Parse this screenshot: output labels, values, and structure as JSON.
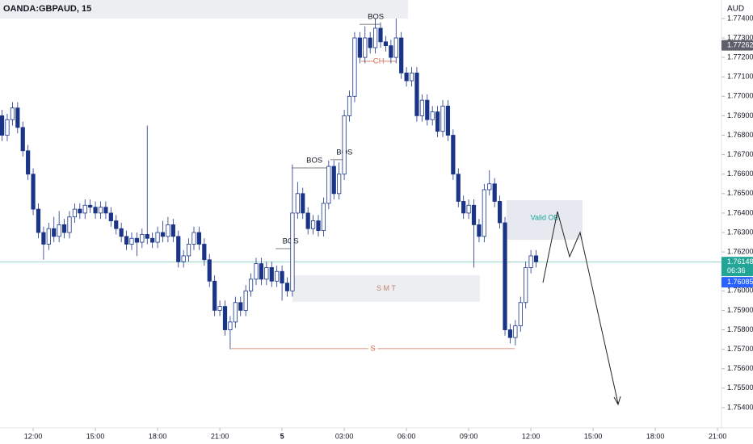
{
  "chart_data": {
    "type": "candlestick",
    "title": "OANDA:GBPAUD, 15",
    "currency": "AUD",
    "xlim": [
      10.4,
      45.19
    ],
    "ylim": [
      1.75296,
      1.77495
    ],
    "xticks": [
      {
        "value": 12,
        "label": "12:00"
      },
      {
        "value": 15,
        "label": "15:00"
      },
      {
        "value": 18,
        "label": "18:00"
      },
      {
        "value": 21,
        "label": "21:00"
      },
      {
        "value": 24,
        "label": "5"
      },
      {
        "value": 27,
        "label": "03:00"
      },
      {
        "value": 30,
        "label": "06:00"
      },
      {
        "value": 33,
        "label": "09:00"
      },
      {
        "value": 36,
        "label": "12:00"
      },
      {
        "value": 39,
        "label": "15:00"
      },
      {
        "value": 42,
        "label": "18:00"
      },
      {
        "value": 45,
        "label": "21:00"
      }
    ],
    "yticks": [
      {
        "value": 1.774,
        "label": "1.77400"
      },
      {
        "value": 1.773,
        "label": "1.77300"
      },
      {
        "value": 1.772,
        "label": "1.77200"
      },
      {
        "value": 1.771,
        "label": "1.77100"
      },
      {
        "value": 1.77,
        "label": "1.77000"
      },
      {
        "value": 1.769,
        "label": "1.76900"
      },
      {
        "value": 1.768,
        "label": "1.76800"
      },
      {
        "value": 1.767,
        "label": "1.76700"
      },
      {
        "value": 1.766,
        "label": "1.76600"
      },
      {
        "value": 1.765,
        "label": "1.76500"
      },
      {
        "value": 1.764,
        "label": "1.76400"
      },
      {
        "value": 1.763,
        "label": "1.76300"
      },
      {
        "value": 1.762,
        "label": "1.76200"
      },
      {
        "value": 1.76,
        "label": "1.76000"
      },
      {
        "value": 1.759,
        "label": "1.75900"
      },
      {
        "value": 1.758,
        "label": "1.75800"
      },
      {
        "value": 1.757,
        "label": "1.75700"
      },
      {
        "value": 1.756,
        "label": "1.75600"
      },
      {
        "value": 1.755,
        "label": "1.75500"
      },
      {
        "value": 1.754,
        "label": "1.75400"
      }
    ],
    "grid": false,
    "up_color": "#ffffff",
    "down_color": "#1a3588",
    "wick_color": "#1a3588",
    "x": [
      10.5,
      10.75,
      11,
      11.25,
      11.5,
      11.75,
      12,
      12.25,
      12.5,
      12.75,
      13,
      13.25,
      13.5,
      13.75,
      14,
      14.25,
      14.5,
      14.75,
      15,
      15.25,
      15.5,
      15.75,
      16,
      16.25,
      16.5,
      16.75,
      17,
      17.25,
      17.5,
      17.75,
      18,
      18.25,
      18.5,
      18.75,
      19,
      19.25,
      19.5,
      19.75,
      20,
      20.25,
      20.5,
      20.75,
      21,
      21.25,
      21.5,
      21.75,
      22,
      22.25,
      22.5,
      22.75,
      23,
      23.25,
      23.5,
      23.75,
      24,
      24.25,
      24.5,
      24.75,
      25,
      25.25,
      25.5,
      25.75,
      26,
      26.25,
      26.5,
      26.75,
      27,
      27.25,
      27.5,
      27.75,
      28,
      28.25,
      28.5,
      28.75,
      29,
      29.25,
      29.5,
      29.75,
      30,
      30.25,
      30.5,
      30.75,
      31,
      31.25,
      31.5,
      31.75,
      32,
      32.25,
      32.5,
      32.75,
      33,
      33.25,
      33.5,
      33.75,
      34,
      34.25,
      34.5,
      34.75,
      35,
      35.25,
      35.5,
      35.75,
      36,
      36.25
    ],
    "open": [
      1.769,
      1.768,
      1.7688,
      1.7694,
      1.7684,
      1.7672,
      1.766,
      1.7642,
      1.763,
      1.7624,
      1.7632,
      1.7628,
      1.7634,
      1.763,
      1.7638,
      1.7642,
      1.764,
      1.7644,
      1.7643,
      1.764,
      1.7643,
      1.764,
      1.7636,
      1.7632,
      1.7628,
      1.7624,
      1.7627,
      1.7625,
      1.7629,
      1.7627,
      1.7625,
      1.763,
      1.7628,
      1.7634,
      1.7628,
      1.7615,
      1.7618,
      1.7624,
      1.763,
      1.7624,
      1.7616,
      1.7605,
      1.759,
      1.7592,
      1.758,
      1.7584,
      1.7594,
      1.759,
      1.76,
      1.7606,
      1.7614,
      1.7606,
      1.7612,
      1.7605,
      1.761,
      1.7604,
      1.76,
      1.764,
      1.765,
      1.764,
      1.7632,
      1.7636,
      1.7631,
      1.7645,
      1.7664,
      1.765,
      1.766,
      1.769,
      1.77,
      1.773,
      1.772,
      1.773,
      1.7725,
      1.7735,
      1.7728,
      1.7726,
      1.772,
      1.773,
      1.7712,
      1.7708,
      1.7712,
      1.769,
      1.7698,
      1.7688,
      1.7692,
      1.7682,
      1.7695,
      1.768,
      1.766,
      1.7646,
      1.764,
      1.7644,
      1.7634,
      1.7628,
      1.7652,
      1.7655,
      1.7646,
      1.7635,
      1.758,
      1.7576,
      1.7582,
      1.7594,
      1.7612,
      1.7618
    ],
    "high": [
      1.7693,
      1.7691,
      1.7697,
      1.7697,
      1.7687,
      1.7675,
      1.7663,
      1.7645,
      1.7633,
      1.7635,
      1.7638,
      1.7641,
      1.7637,
      1.7641,
      1.7645,
      1.7645,
      1.7647,
      1.7647,
      1.7646,
      1.7646,
      1.7646,
      1.7643,
      1.7639,
      1.7635,
      1.7631,
      1.763,
      1.763,
      1.7632,
      1.7685,
      1.763,
      1.7633,
      1.7636,
      1.7638,
      1.7637,
      1.7631,
      1.7621,
      1.7627,
      1.7633,
      1.7633,
      1.7627,
      1.7619,
      1.7608,
      1.7595,
      1.7595,
      1.7587,
      1.7597,
      1.7597,
      1.7603,
      1.7609,
      1.7617,
      1.7617,
      1.7615,
      1.7615,
      1.7613,
      1.7613,
      1.7607,
      1.7665,
      1.7656,
      1.7653,
      1.7643,
      1.7639,
      1.7639,
      1.7648,
      1.7667,
      1.7667,
      1.7666,
      1.7693,
      1.7703,
      1.7733,
      1.7733,
      1.7736,
      1.7733,
      1.774,
      1.7738,
      1.7731,
      1.7729,
      1.774,
      1.7733,
      1.7715,
      1.7715,
      1.7715,
      1.7701,
      1.7701,
      1.7695,
      1.7695,
      1.7698,
      1.7698,
      1.7683,
      1.7663,
      1.7649,
      1.7647,
      1.7647,
      1.7637,
      1.7655,
      1.7662,
      1.7658,
      1.7649,
      1.7638,
      1.7583,
      1.7585,
      1.7597,
      1.7615,
      1.7621,
      1.7621
    ],
    "low": [
      1.7677,
      1.7677,
      1.7685,
      1.7681,
      1.7669,
      1.7657,
      1.7639,
      1.7627,
      1.7616,
      1.7621,
      1.7625,
      1.7625,
      1.7627,
      1.7627,
      1.7635,
      1.7637,
      1.7637,
      1.764,
      1.7637,
      1.7637,
      1.7637,
      1.7633,
      1.7629,
      1.7625,
      1.7621,
      1.7621,
      1.7618,
      1.7622,
      1.7624,
      1.7622,
      1.7622,
      1.7625,
      1.7625,
      1.7625,
      1.7612,
      1.7612,
      1.7615,
      1.7621,
      1.7621,
      1.7613,
      1.7602,
      1.7587,
      1.7587,
      1.7577,
      1.757,
      1.7581,
      1.7587,
      1.7587,
      1.7597,
      1.7603,
      1.7603,
      1.7603,
      1.7602,
      1.7602,
      1.7595,
      1.7597,
      1.7597,
      1.7637,
      1.7637,
      1.7629,
      1.7629,
      1.7628,
      1.7628,
      1.7642,
      1.7647,
      1.7647,
      1.7657,
      1.7687,
      1.7697,
      1.7717,
      1.7717,
      1.7722,
      1.7722,
      1.7725,
      1.7723,
      1.7717,
      1.7717,
      1.7709,
      1.7705,
      1.7705,
      1.7687,
      1.7687,
      1.7685,
      1.7685,
      1.7679,
      1.7679,
      1.7677,
      1.7657,
      1.7643,
      1.7637,
      1.7637,
      1.7612,
      1.7625,
      1.7625,
      1.7649,
      1.7643,
      1.7632,
      1.7577,
      1.7573,
      1.7572,
      1.7579,
      1.7591,
      1.7609,
      1.7612
    ],
    "close": [
      1.768,
      1.7688,
      1.7694,
      1.7684,
      1.7672,
      1.766,
      1.7642,
      1.763,
      1.7624,
      1.7632,
      1.7628,
      1.7634,
      1.763,
      1.7638,
      1.7642,
      1.764,
      1.7644,
      1.7643,
      1.764,
      1.7643,
      1.764,
      1.7636,
      1.7632,
      1.7628,
      1.7624,
      1.7627,
      1.7625,
      1.7629,
      1.7627,
      1.7625,
      1.763,
      1.7628,
      1.7634,
      1.7628,
      1.7615,
      1.7618,
      1.7624,
      1.763,
      1.7624,
      1.7616,
      1.7605,
      1.759,
      1.7592,
      1.758,
      1.7584,
      1.7594,
      1.759,
      1.76,
      1.7606,
      1.7614,
      1.7606,
      1.7612,
      1.7605,
      1.761,
      1.7604,
      1.76,
      1.764,
      1.765,
      1.764,
      1.7632,
      1.7636,
      1.7631,
      1.7645,
      1.7664,
      1.765,
      1.766,
      1.769,
      1.77,
      1.773,
      1.772,
      1.773,
      1.7725,
      1.7735,
      1.7728,
      1.7726,
      1.772,
      1.773,
      1.7712,
      1.7708,
      1.7712,
      1.769,
      1.7698,
      1.7688,
      1.7692,
      1.7682,
      1.7695,
      1.768,
      1.766,
      1.7646,
      1.764,
      1.7644,
      1.7634,
      1.7628,
      1.7652,
      1.7655,
      1.7646,
      1.7635,
      1.758,
      1.7576,
      1.7582,
      1.7594,
      1.7612,
      1.7618,
      1.7615
    ],
    "zones": [
      {
        "x": [
          10.4,
          30.07
        ],
        "y": [
          1.774,
          1.77495
        ],
        "color": "#eceef2"
      },
      {
        "label": "S M T",
        "x": [
          24.5,
          33.54
        ],
        "y": [
          1.75944,
          1.7608
        ],
        "color": "#eceef2",
        "label_color": "#c0806e"
      },
      {
        "label": "Valid OB",
        "x": [
          34.83,
          38.49
        ],
        "y": [
          1.76263,
          1.76466
        ],
        "color": "#e6e9ef",
        "label_color": "#1aa39a"
      }
    ],
    "levels": [
      {
        "label": "BOS",
        "x": [
          23.69,
          24.5
        ],
        "y": 1.76217,
        "color": "#555555"
      },
      {
        "label": "BOS",
        "x": [
          24.47,
          26.34
        ],
        "y": 1.76632,
        "color": "#555555"
      },
      {
        "label": "BOS",
        "x": [
          26.34,
          27.0
        ],
        "y": 1.76674,
        "color": "#555555"
      },
      {
        "label": "BOS",
        "x": [
          27.74,
          28.72
        ],
        "y": 1.7737,
        "color": "#555555"
      },
      {
        "label": "CH",
        "x": [
          27.82,
          29.49
        ],
        "y": 1.7718,
        "color": "#d0705a"
      },
      {
        "label": "S",
        "x": [
          21.54,
          35.22
        ],
        "y": 1.75703,
        "color": "#d0705a"
      }
    ],
    "price_tags": [
      {
        "value": 1.77262,
        "label": "1.77262",
        "color": "#5d606b"
      },
      {
        "value": 1.76148,
        "label": "1.76148",
        "sub": "06:36",
        "color": "#22a596",
        "line": true
      },
      {
        "value": 1.76085,
        "label": "1.76085",
        "color": "#2962ff"
      }
    ]
  }
}
